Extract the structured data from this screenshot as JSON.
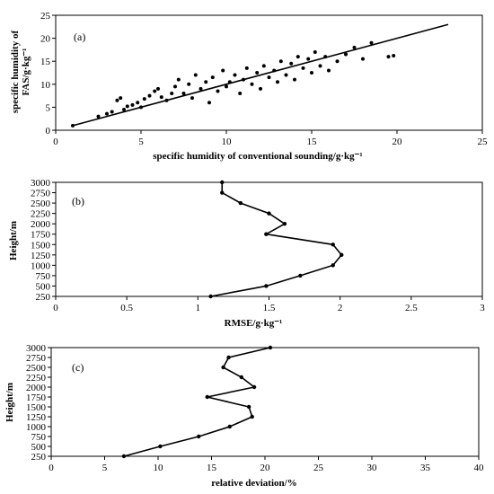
{
  "chart_data": [
    {
      "type": "scatter",
      "panel_label": "(a)",
      "xlabel": "specific humidity of conventional sounding/g·kg⁻¹",
      "ylabel_lines": [
        "specific humidity of",
        "FAS/g·kg⁻¹"
      ],
      "xlim": [
        0,
        25
      ],
      "ylim": [
        0,
        25
      ],
      "xticks": [
        0,
        5,
        10,
        15,
        20,
        25
      ],
      "yticks": [
        0,
        5,
        10,
        15,
        20,
        25
      ],
      "fit_line": {
        "x": [
          1,
          23
        ],
        "y": [
          1,
          23
        ]
      },
      "points": [
        [
          1.0,
          1.0
        ],
        [
          2.5,
          3.0
        ],
        [
          3.0,
          3.6
        ],
        [
          3.3,
          4.0
        ],
        [
          3.6,
          6.5
        ],
        [
          3.8,
          7.0
        ],
        [
          4.0,
          4.5
        ],
        [
          4.2,
          5.2
        ],
        [
          4.5,
          5.5
        ],
        [
          4.8,
          6.0
        ],
        [
          5.0,
          5.0
        ],
        [
          5.2,
          6.8
        ],
        [
          5.5,
          7.5
        ],
        [
          5.8,
          8.5
        ],
        [
          6.0,
          9.0
        ],
        [
          6.2,
          7.2
        ],
        [
          6.5,
          6.5
        ],
        [
          6.8,
          8.0
        ],
        [
          7.0,
          9.5
        ],
        [
          7.2,
          11.0
        ],
        [
          7.5,
          8.0
        ],
        [
          7.8,
          10.0
        ],
        [
          8.0,
          7.0
        ],
        [
          8.2,
          12.0
        ],
        [
          8.5,
          9.0
        ],
        [
          8.8,
          10.5
        ],
        [
          9.0,
          6.0
        ],
        [
          9.2,
          11.5
        ],
        [
          9.5,
          8.5
        ],
        [
          9.8,
          13.0
        ],
        [
          10.0,
          9.5
        ],
        [
          10.2,
          10.5
        ],
        [
          10.5,
          12.0
        ],
        [
          10.8,
          8.0
        ],
        [
          11.0,
          11.0
        ],
        [
          11.2,
          13.5
        ],
        [
          11.5,
          10.0
        ],
        [
          11.8,
          12.5
        ],
        [
          12.0,
          9.0
        ],
        [
          12.2,
          14.0
        ],
        [
          12.5,
          11.5
        ],
        [
          12.8,
          13.0
        ],
        [
          13.0,
          10.5
        ],
        [
          13.2,
          15.0
        ],
        [
          13.5,
          12.0
        ],
        [
          13.8,
          14.5
        ],
        [
          14.0,
          11.0
        ],
        [
          14.2,
          16.0
        ],
        [
          14.5,
          13.5
        ],
        [
          14.8,
          15.5
        ],
        [
          15.0,
          12.5
        ],
        [
          15.2,
          17.0
        ],
        [
          15.5,
          14.0
        ],
        [
          15.8,
          16.0
        ],
        [
          16.0,
          13.0
        ],
        [
          16.5,
          15.0
        ],
        [
          17.0,
          16.5
        ],
        [
          17.5,
          18.0
        ],
        [
          18.0,
          15.5
        ],
        [
          18.5,
          19.0
        ],
        [
          19.5,
          16.0
        ],
        [
          19.8,
          16.2
        ]
      ]
    },
    {
      "type": "line",
      "panel_label": "(b)",
      "xlabel": "RMSE/g·kg⁻¹",
      "ylabel": "Height/m",
      "xlim": [
        0,
        3
      ],
      "ylim": [
        250,
        3000
      ],
      "xticks": [
        0,
        0.5,
        1,
        1.5,
        2,
        2.5,
        3
      ],
      "yticks": [
        250,
        500,
        750,
        1000,
        1250,
        1500,
        1750,
        2000,
        2250,
        2500,
        2750,
        3000
      ],
      "x": [
        1.09,
        1.48,
        1.72,
        1.95,
        2.01,
        1.95,
        1.48,
        1.61,
        1.5,
        1.3,
        1.17,
        1.17
      ],
      "y": [
        250,
        500,
        750,
        1000,
        1250,
        1500,
        1750,
        2000,
        2250,
        2500,
        2750,
        3000
      ]
    },
    {
      "type": "line",
      "panel_label": "(c)",
      "xlabel": "relative deviation/%",
      "ylabel": "Height/m",
      "xlim": [
        0,
        40
      ],
      "ylim": [
        250,
        3000
      ],
      "xticks": [
        0,
        5,
        10,
        15,
        20,
        25,
        30,
        35,
        40
      ],
      "yticks": [
        250,
        500,
        750,
        1000,
        1250,
        1500,
        1750,
        2000,
        2250,
        2500,
        2750,
        3000
      ],
      "x": [
        6.8,
        10.2,
        13.8,
        16.7,
        18.8,
        18.5,
        14.6,
        19.0,
        17.8,
        16.1,
        16.6,
        20.5
      ],
      "y": [
        250,
        500,
        750,
        1000,
        1250,
        1500,
        1750,
        2000,
        2250,
        2500,
        2750,
        3000
      ]
    }
  ]
}
